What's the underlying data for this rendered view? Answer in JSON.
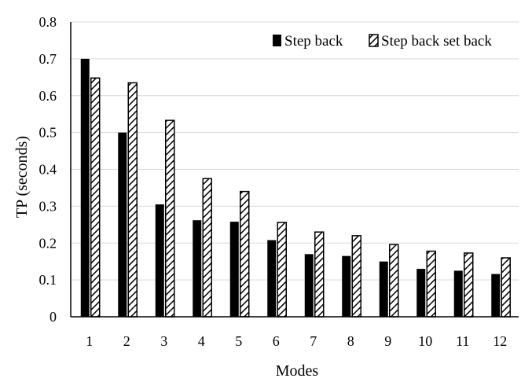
{
  "chart_data": {
    "type": "bar",
    "xlabel": "Modes",
    "ylabel": "TP (seconds)",
    "categories": [
      "1",
      "2",
      "3",
      "4",
      "5",
      "6",
      "7",
      "8",
      "9",
      "10",
      "11",
      "12"
    ],
    "ylim": [
      0,
      0.8
    ],
    "yticks": [
      "0",
      "0.1",
      "0.2",
      "0.3",
      "0.4",
      "0.5",
      "0.6",
      "0.7",
      "0.8"
    ],
    "grid": true,
    "legend": "top-right",
    "series": [
      {
        "name": "Step back",
        "fill": "solid",
        "color": "#000000",
        "values": [
          0.7,
          0.5,
          0.305,
          0.262,
          0.258,
          0.208,
          0.17,
          0.165,
          0.15,
          0.13,
          0.125,
          0.116
        ]
      },
      {
        "name": "Step back set back",
        "fill": "hatched",
        "color": "#000000",
        "values": [
          0.648,
          0.635,
          0.533,
          0.375,
          0.34,
          0.256,
          0.23,
          0.22,
          0.196,
          0.178,
          0.173,
          0.16
        ]
      }
    ]
  }
}
